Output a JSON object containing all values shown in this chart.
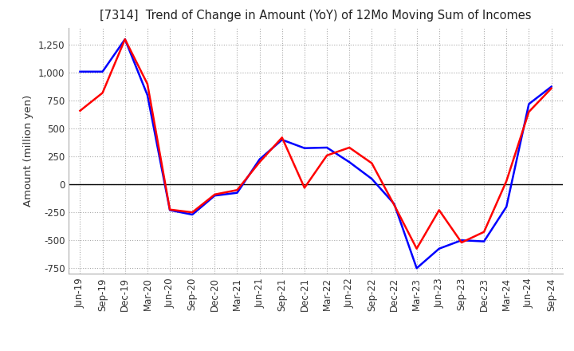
{
  "title": "[7314]  Trend of Change in Amount (YoY) of 12Mo Moving Sum of Incomes",
  "ylabel": "Amount (million yen)",
  "ylim": [
    -800,
    1400
  ],
  "yticks": [
    -750,
    -500,
    -250,
    0,
    250,
    500,
    750,
    1000,
    1250
  ],
  "background_color": "#ffffff",
  "grid_color": "#aaaaaa",
  "ordinary_income_color": "#0000ff",
  "net_income_color": "#ff0000",
  "x_labels": [
    "Jun-19",
    "Sep-19",
    "Dec-19",
    "Mar-20",
    "Jun-20",
    "Sep-20",
    "Dec-20",
    "Mar-21",
    "Jun-21",
    "Sep-21",
    "Dec-21",
    "Mar-22",
    "Jun-22",
    "Sep-22",
    "Dec-22",
    "Mar-23",
    "Jun-23",
    "Sep-23",
    "Dec-23",
    "Mar-24",
    "Jun-24",
    "Sep-24"
  ],
  "ordinary_income": [
    1010,
    1010,
    1300,
    800,
    -230,
    -270,
    -100,
    -75,
    225,
    400,
    325,
    330,
    200,
    50,
    -175,
    -750,
    -575,
    -500,
    -510,
    -200,
    720,
    875
  ],
  "net_income": [
    660,
    820,
    1300,
    900,
    -225,
    -250,
    -90,
    -50,
    200,
    420,
    -30,
    260,
    330,
    190,
    -185,
    -575,
    -230,
    -520,
    -425,
    30,
    650,
    860
  ]
}
